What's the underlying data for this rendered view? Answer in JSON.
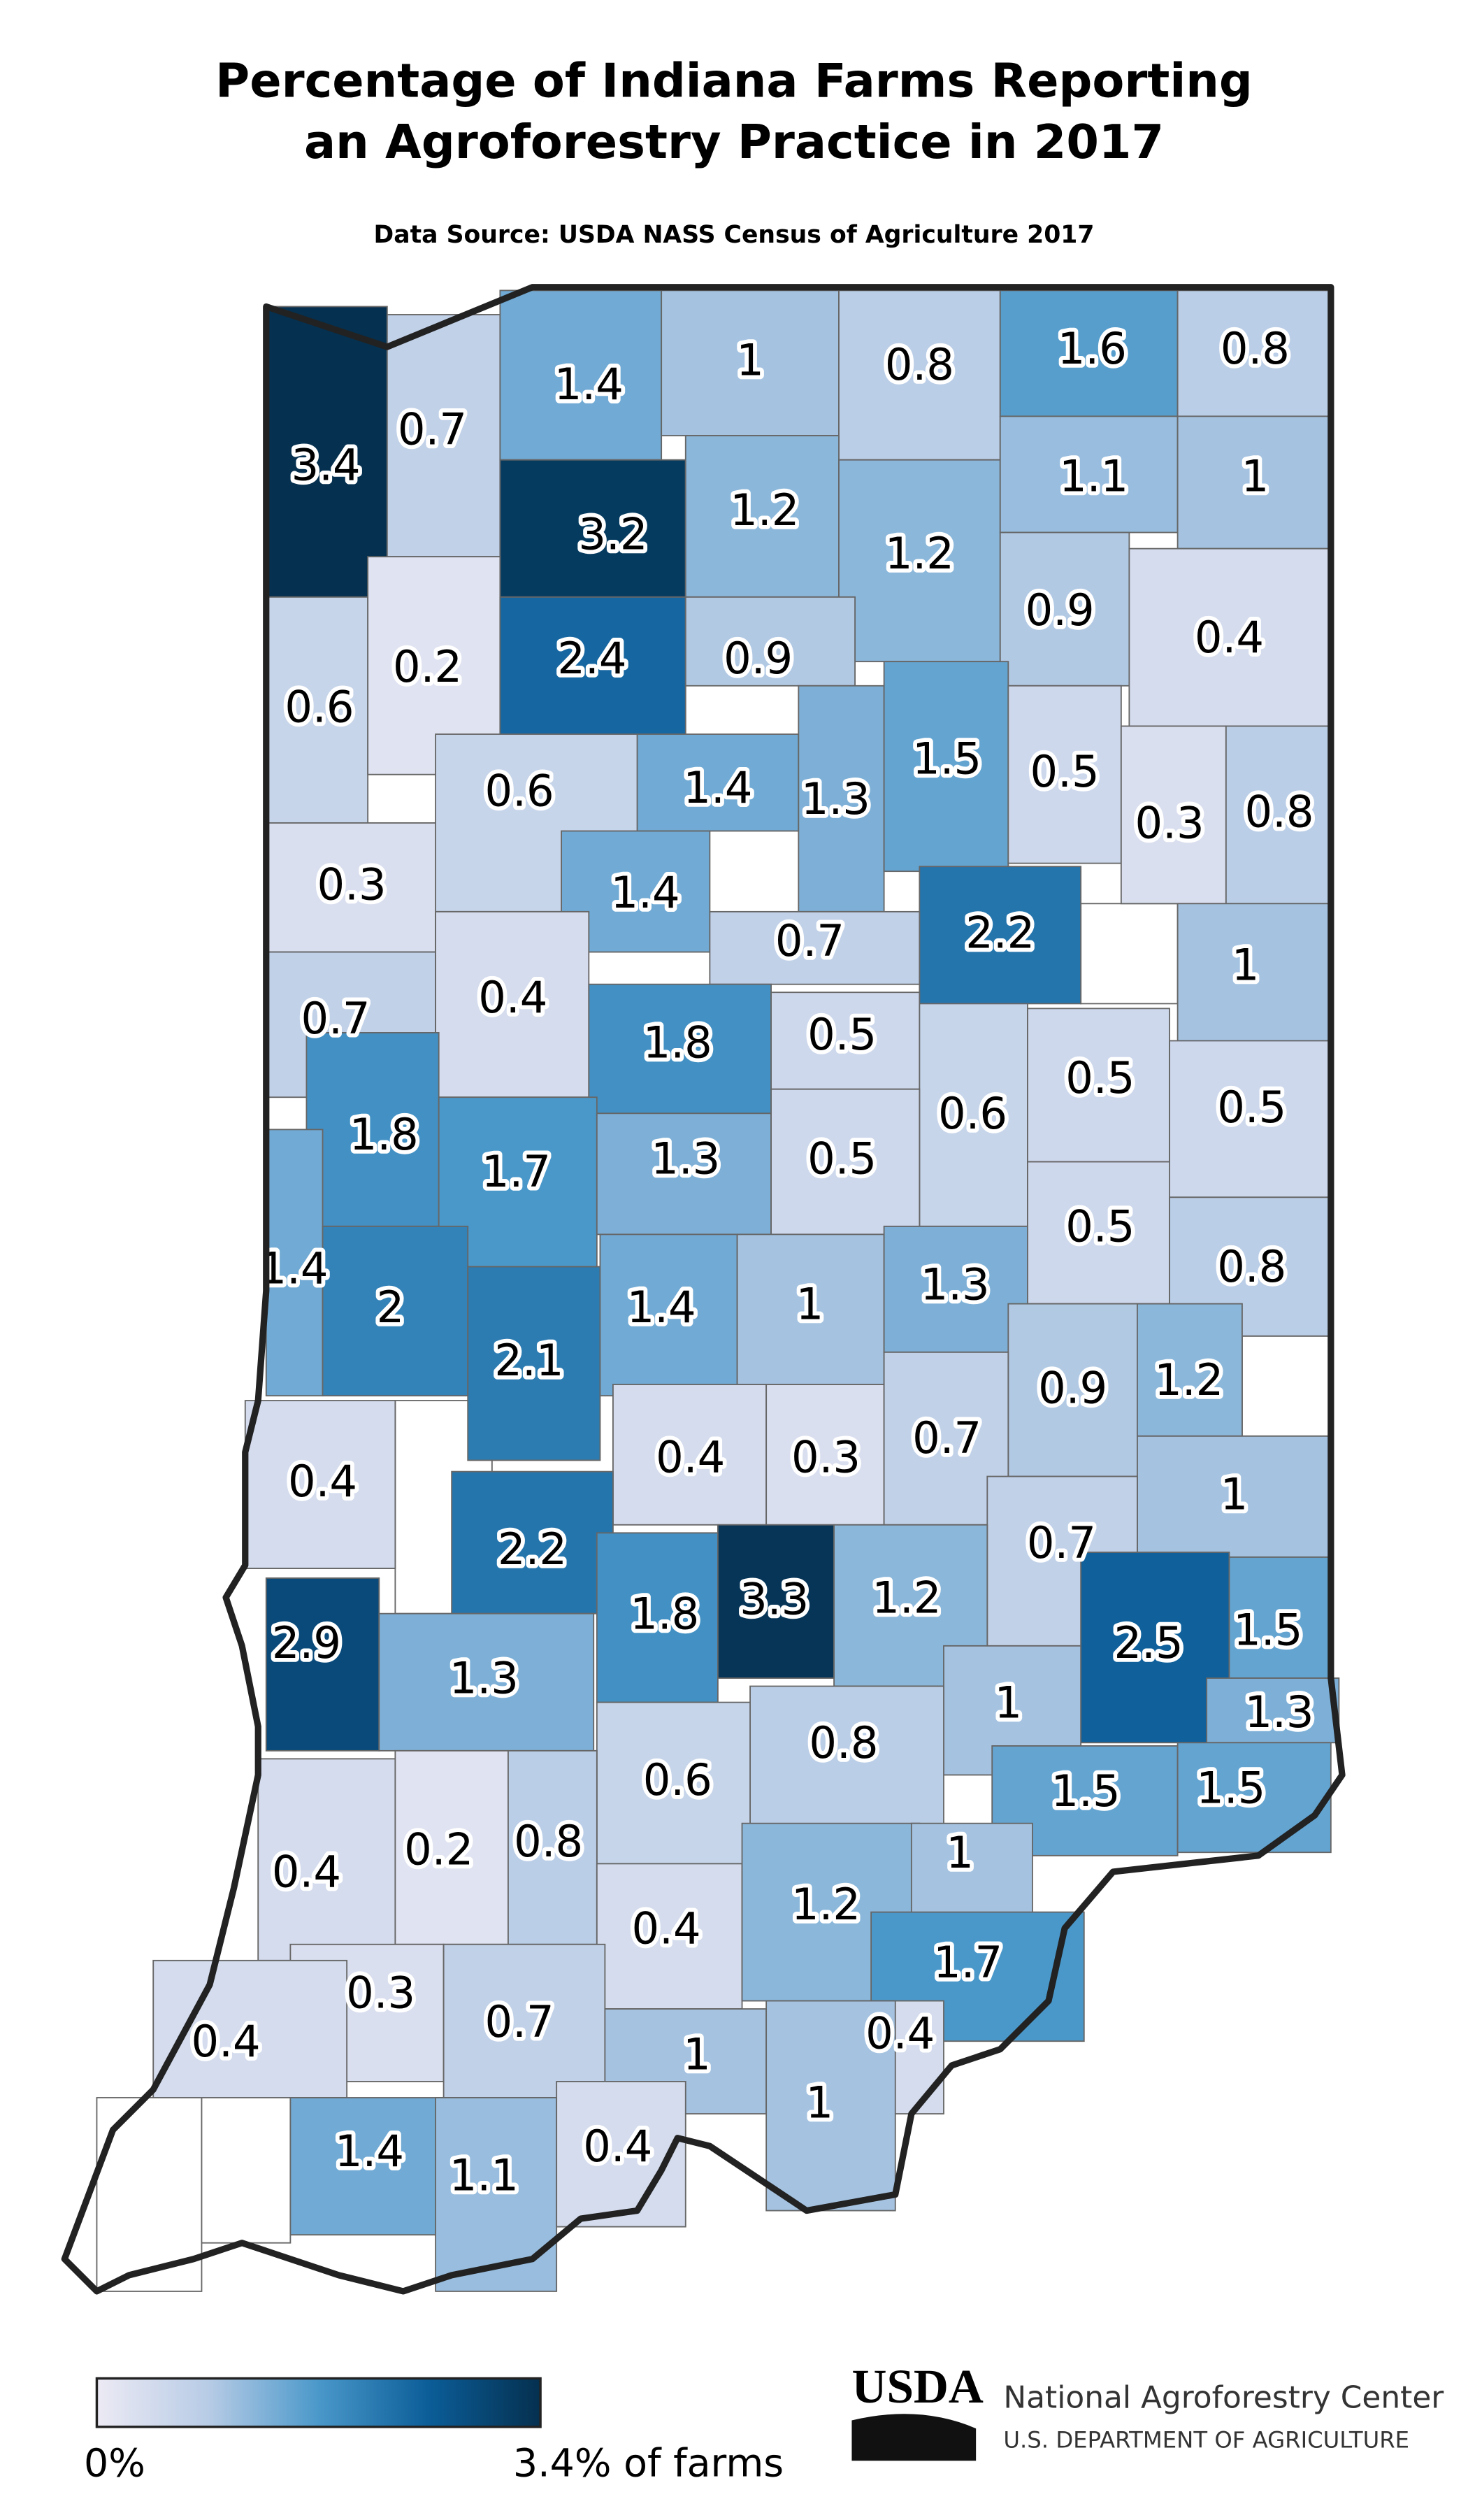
{
  "title_lines": [
    "Percentage of Indiana Farms Reporting",
    "an Agroforestry Practice in 2017"
  ],
  "subtitle": "Data Source: USDA NASS Census of Agriculture 2017",
  "map": {
    "colors": [
      "#eceaf4",
      "#b8cce6",
      "#4a98ca",
      "#0b5d98",
      "#05304f"
    ],
    "counties": [
      {
        "value": 3.4
      },
      {
        "value": 0.7
      },
      {
        "value": 1.4
      },
      {
        "value": 1
      },
      {
        "value": 0.8
      },
      {
        "value": 1.6
      },
      {
        "value": 0.8
      },
      {
        "value": 3.2
      },
      {
        "value": 1.2
      },
      {
        "value": 1.2
      },
      {
        "value": 1.1
      },
      {
        "value": 1
      },
      {
        "value": 0.9
      },
      {
        "value": 0.4
      },
      {
        "value": 0.6
      },
      {
        "value": 0.2
      },
      {
        "value": 2.4
      },
      {
        "value": 0.9
      },
      {
        "value": 1.4
      },
      {
        "value": 1.3
      },
      {
        "value": 1.5
      },
      {
        "value": 0.5
      },
      {
        "value": 0.3
      },
      {
        "value": 0.8
      },
      {
        "value": 0.6
      },
      {
        "value": 0.3
      },
      {
        "value": 1.4
      },
      {
        "value": 2.2
      },
      {
        "value": 0.7
      },
      {
        "value": 1
      },
      {
        "value": 0.7
      },
      {
        "value": 0.4
      },
      {
        "value": 1.8
      },
      {
        "value": 0.5
      },
      {
        "value": 0.6
      },
      {
        "value": 0.5
      },
      {
        "value": 0.5
      },
      {
        "value": 1.8
      },
      {
        "value": 1.7
      },
      {
        "value": 1.3
      },
      {
        "value": 0.5
      },
      {
        "value": 0.5
      },
      {
        "value": 0.8
      },
      {
        "value": 1.4
      },
      {
        "value": 2
      },
      {
        "value": 2.1
      },
      {
        "value": 1.4
      },
      {
        "value": 1
      },
      {
        "value": 1.3
      },
      {
        "value": 0.9
      },
      {
        "value": 1.2
      },
      {
        "value": 0.4
      },
      {
        "value": 0.4
      },
      {
        "value": 0.3
      },
      {
        "value": 0.7
      },
      {
        "value": 1
      },
      {
        "value": 2.2
      },
      {
        "value": 0.7
      },
      {
        "value": 2.9
      },
      {
        "value": 1.3
      },
      {
        "value": 1.8
      },
      {
        "value": 3.3
      },
      {
        "value": 1.2
      },
      {
        "value": 2.5
      },
      {
        "value": 1.5
      },
      {
        "value": 1.3
      },
      {
        "value": 1
      },
      {
        "value": 0.8
      },
      {
        "value": 0.6
      },
      {
        "value": 1.5
      },
      {
        "value": 1.5
      },
      {
        "value": 0.4
      },
      {
        "value": 0.2
      },
      {
        "value": 0.8
      },
      {
        "value": 0.4
      },
      {
        "value": 1.2
      },
      {
        "value": 1
      },
      {
        "value": 1.7
      },
      {
        "value": 0.3
      },
      {
        "value": 0.7
      },
      {
        "value": 0.4
      },
      {
        "value": 1
      },
      {
        "value": 0.4
      },
      {
        "value": 1
      },
      {
        "value": 1.4
      },
      {
        "value": 1.1
      },
      {
        "value": 0.4
      }
    ],
    "legend": {
      "min": {
        "value": 0,
        "label": "0%"
      },
      "max": {
        "value": 3.4,
        "label": "3.4% of farms"
      }
    }
  },
  "footer": {
    "logo": "USDA",
    "org": "National Agroforestry Center",
    "dept": "U.S. DEPARTMENT OF AGRICULTURE"
  }
}
